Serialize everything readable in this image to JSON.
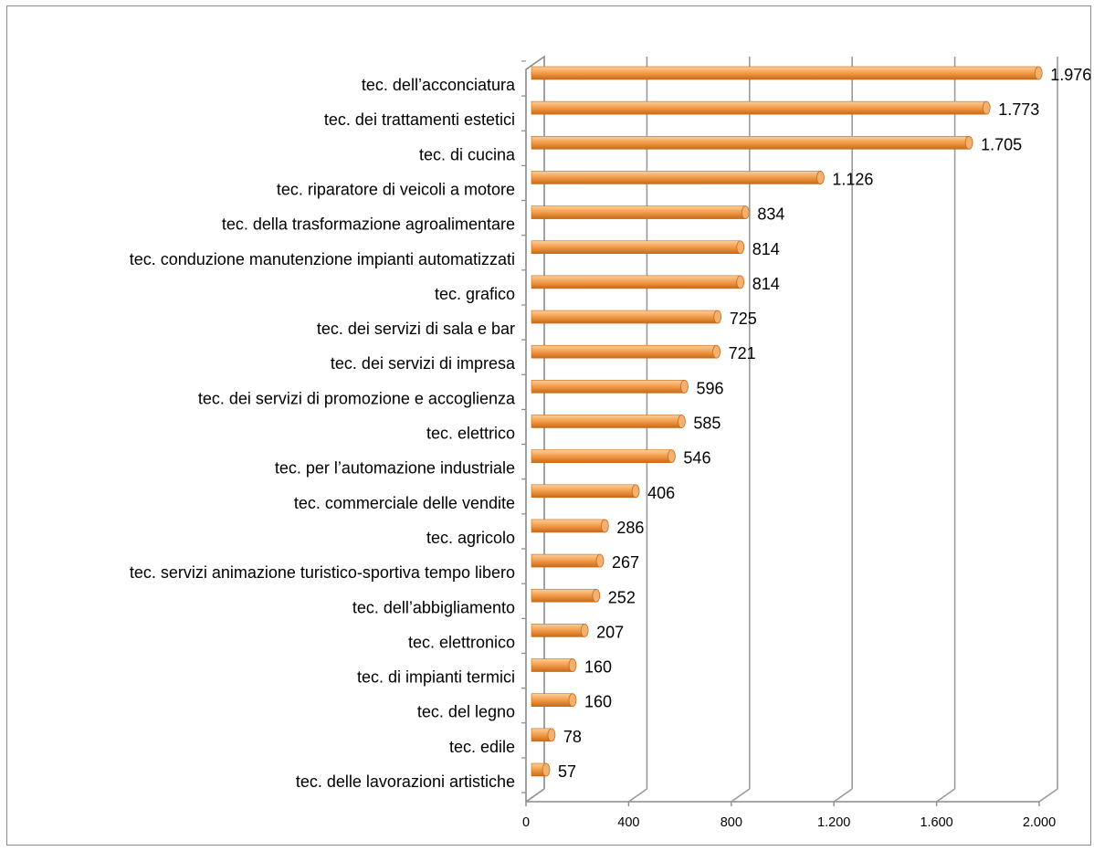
{
  "chart_data": {
    "type": "bar",
    "orientation": "horizontal",
    "style": "3d-cylinder",
    "title": "",
    "xlabel": "",
    "ylabel": "",
    "xlim": [
      0,
      2000
    ],
    "grid": true,
    "legend": "none",
    "categories": [
      "tec. dell’acconciatura",
      "tec. dei trattamenti estetici",
      "tec. di cucina",
      "tec. riparatore di veicoli a motore",
      "tec. della trasformazione agroalimentare",
      "tec. conduzione manutenzione impianti automatizzati",
      "tec. grafico",
      "tec. dei servizi di sala e bar",
      "tec. dei servizi di impresa",
      "tec. dei servizi di promozione e accoglienza",
      "tec. elettrico",
      "tec. per l’automazione industriale",
      "tec. commerciale delle vendite",
      "tec. agricolo",
      "tec. servizi animazione turistico-sportiva tempo libero",
      "tec. dell’abbigliamento",
      "tec. elettronico",
      "tec. di impianti termici",
      "tec. del legno",
      "tec. edile",
      "tec. delle lavorazioni artistiche"
    ],
    "values": [
      1976,
      1773,
      1705,
      1126,
      834,
      814,
      814,
      725,
      721,
      596,
      585,
      546,
      406,
      286,
      267,
      252,
      207,
      160,
      160,
      78,
      57
    ],
    "value_labels": [
      "1.976",
      "1.773",
      "1.705",
      "1.126",
      "834",
      "814",
      "814",
      "725",
      "721",
      "596",
      "585",
      "546",
      "406",
      "286",
      "267",
      "252",
      "207",
      "160",
      "160",
      "78",
      "57"
    ],
    "ticks": [
      0,
      400,
      800,
      1200,
      1600,
      2000
    ],
    "tick_labels": [
      "0",
      "400",
      "800",
      "1.200",
      "1.600",
      "2.000"
    ],
    "colors": {
      "bar_light": "#fbcf9c",
      "bar_mid": "#f5a04f",
      "bar_dark": "#c86a17",
      "bar_cap": "#f3b171",
      "grid": "#9a9a9a",
      "axis": "#8a8a8a",
      "frame": "#8c8c8c"
    }
  }
}
